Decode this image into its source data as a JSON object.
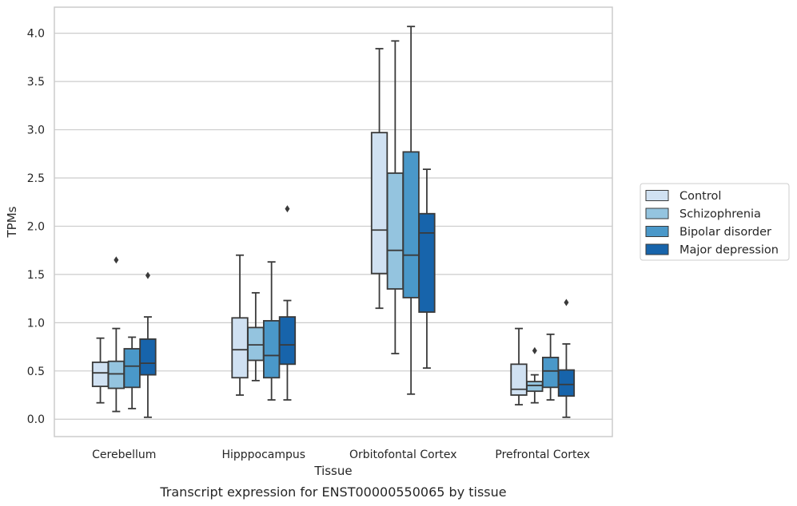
{
  "chart_data": {
    "type": "box",
    "xlabel": "Tissue",
    "ylabel": "TPMs",
    "caption": "Transcript expression for ENST00000550065 by tissue",
    "categories": [
      "Cerebellum",
      "Hipppocampus",
      "Orbitofontal Cortex",
      "Prefrontal Cortex"
    ],
    "ylim": [
      -0.18,
      4.27
    ],
    "yticks": [
      "0.0",
      "0.5",
      "1.0",
      "1.5",
      "2.0",
      "2.5",
      "3.0",
      "3.5",
      "4.0"
    ],
    "ytick_values": [
      0,
      0.5,
      1,
      1.5,
      2,
      2.5,
      3,
      3.5,
      4
    ],
    "grid": "horizontal",
    "legend_position": "right",
    "series": [
      {
        "name": "Control",
        "color": "#d0e1f2",
        "boxes": [
          {
            "min": 0.17,
            "q1": 0.34,
            "median": 0.48,
            "q3": 0.59,
            "max": 0.84,
            "outliers": []
          },
          {
            "min": 0.25,
            "q1": 0.43,
            "median": 0.72,
            "q3": 1.05,
            "max": 1.7,
            "outliers": []
          },
          {
            "min": 1.15,
            "q1": 1.51,
            "median": 1.96,
            "q3": 2.97,
            "max": 3.84,
            "outliers": []
          },
          {
            "min": 0.15,
            "q1": 0.25,
            "median": 0.31,
            "q3": 0.57,
            "max": 0.94,
            "outliers": []
          }
        ]
      },
      {
        "name": "Schizophrenia",
        "color": "#94c4df",
        "boxes": [
          {
            "min": 0.08,
            "q1": 0.32,
            "median": 0.47,
            "q3": 0.6,
            "max": 0.94,
            "outliers": [
              1.65
            ]
          },
          {
            "min": 0.4,
            "q1": 0.61,
            "median": 0.77,
            "q3": 0.95,
            "max": 1.31,
            "outliers": []
          },
          {
            "min": 0.68,
            "q1": 1.35,
            "median": 1.75,
            "q3": 2.55,
            "max": 3.92,
            "outliers": []
          },
          {
            "min": 0.17,
            "q1": 0.29,
            "median": 0.35,
            "q3": 0.39,
            "max": 0.46,
            "outliers": [
              0.71
            ]
          }
        ]
      },
      {
        "name": "Bipolar disorder",
        "color": "#4a98c9",
        "boxes": [
          {
            "min": 0.11,
            "q1": 0.33,
            "median": 0.55,
            "q3": 0.73,
            "max": 0.85,
            "outliers": []
          },
          {
            "min": 0.2,
            "q1": 0.43,
            "median": 0.66,
            "q3": 1.02,
            "max": 1.63,
            "outliers": []
          },
          {
            "min": 0.26,
            "q1": 1.26,
            "median": 1.7,
            "q3": 2.77,
            "max": 4.07,
            "outliers": []
          },
          {
            "min": 0.2,
            "q1": 0.33,
            "median": 0.5,
            "q3": 0.64,
            "max": 0.88,
            "outliers": []
          }
        ]
      },
      {
        "name": "Major depression",
        "color": "#1764ab",
        "boxes": [
          {
            "min": 0.02,
            "q1": 0.46,
            "median": 0.58,
            "q3": 0.83,
            "max": 1.06,
            "outliers": [
              1.49
            ]
          },
          {
            "min": 0.2,
            "q1": 0.57,
            "median": 0.77,
            "q3": 1.06,
            "max": 1.23,
            "outliers": [
              2.18
            ]
          },
          {
            "min": 0.53,
            "q1": 1.11,
            "median": 1.93,
            "q3": 2.13,
            "max": 2.59,
            "outliers": []
          },
          {
            "min": 0.02,
            "q1": 0.24,
            "median": 0.36,
            "q3": 0.51,
            "max": 0.78,
            "outliers": [
              1.21
            ]
          }
        ]
      }
    ]
  }
}
